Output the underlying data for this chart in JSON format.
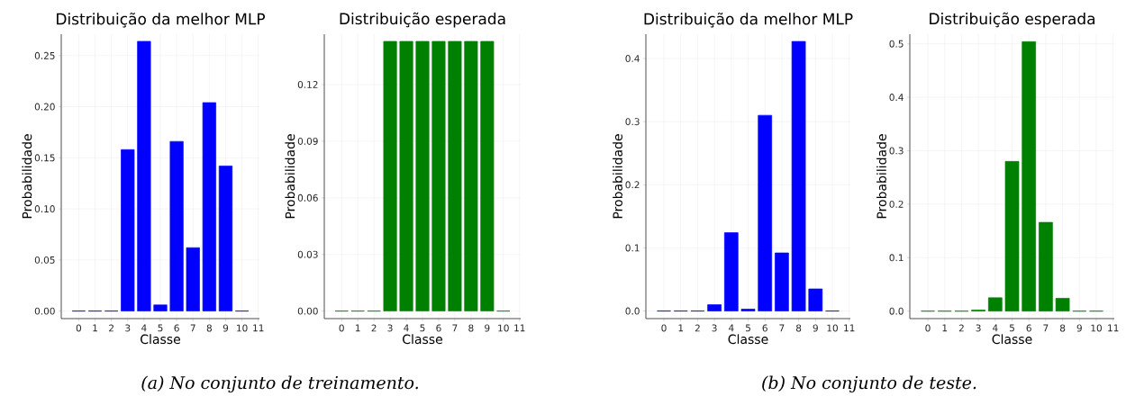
{
  "chart_data": [
    {
      "type": "bar",
      "title": "Distribuição da melhor MLP",
      "xlabel": "Classe",
      "ylabel": "Probabilidade",
      "x": [
        0,
        1,
        2,
        3,
        4,
        5,
        6,
        7,
        8,
        9,
        10
      ],
      "values": [
        0,
        0,
        0,
        0.158,
        0.264,
        0.006,
        0.166,
        0.062,
        0.204,
        0.142,
        0
      ],
      "color": "#0000ff",
      "xlim": [
        -1.07,
        11.07
      ],
      "xticks": [
        0,
        1,
        2,
        3,
        4,
        5,
        6,
        7,
        8,
        9,
        10,
        11
      ],
      "ylim": [
        -0.0074,
        0.271
      ],
      "yticks": [
        {
          "value": 0,
          "label": "0.00"
        },
        0.05,
        {
          "value": 0.1,
          "label": "0.10"
        },
        0.15,
        {
          "value": 0.2,
          "label": "0.20"
        },
        0.25
      ],
      "grid": true,
      "annotations": [
        "(a) No conjunto de treinamento."
      ]
    },
    {
      "type": "bar",
      "title": "Distribuição esperada",
      "xlabel": "Classe",
      "ylabel": "Probabilidade",
      "x": [
        0,
        1,
        2,
        3,
        4,
        5,
        6,
        7,
        8,
        9,
        10
      ],
      "values": [
        0,
        0,
        0,
        0.1429,
        0.1429,
        0.1429,
        0.1429,
        0.1429,
        0.1429,
        0.1429,
        0
      ],
      "color": "#008000",
      "xlim": [
        -1.07,
        11.07
      ],
      "xticks": [
        0,
        1,
        2,
        3,
        4,
        5,
        6,
        7,
        8,
        9,
        10,
        11
      ],
      "ylim": [
        -0.004,
        0.1467
      ],
      "yticks": [
        {
          "value": 0,
          "label": "0.00"
        },
        0.03,
        0.06,
        0.09,
        0.12
      ],
      "grid": true
    },
    {
      "type": "bar",
      "title": "Distribuição da melhor MLP",
      "xlabel": "Classe",
      "ylabel": "Probabilidade",
      "x": [
        0,
        1,
        2,
        3,
        4,
        5,
        6,
        7,
        8,
        9,
        10
      ],
      "values": [
        0,
        0,
        0,
        0.01,
        0.124,
        0.003,
        0.31,
        0.092,
        0.427,
        0.035,
        0
      ],
      "color": "#0000ff",
      "xlim": [
        -1.07,
        11.07
      ],
      "xticks": [
        0,
        1,
        2,
        3,
        4,
        5,
        6,
        7,
        8,
        9,
        10,
        11
      ],
      "ylim": [
        -0.012,
        0.4385
      ],
      "yticks": [
        {
          "value": 0,
          "label": "0.0"
        },
        0.1,
        0.2,
        0.3,
        0.4
      ],
      "grid": true,
      "annotations": [
        "(b) No conjunto de teste."
      ]
    },
    {
      "type": "bar",
      "title": "Distribuição esperada",
      "xlabel": "Classe",
      "ylabel": "Probabilidade",
      "x": [
        0,
        1,
        2,
        3,
        4,
        5,
        6,
        7,
        8,
        9,
        10
      ],
      "values": [
        0,
        0,
        0,
        0.002,
        0.025,
        0.28,
        0.504,
        0.166,
        0.024,
        0,
        0
      ],
      "color": "#008000",
      "xlim": [
        -1.07,
        11.07
      ],
      "xticks": [
        0,
        1,
        2,
        3,
        4,
        5,
        6,
        7,
        8,
        9,
        10,
        11
      ],
      "ylim": [
        -0.014,
        0.518
      ],
      "yticks": [
        {
          "value": 0,
          "label": "0.0"
        },
        0.1,
        0.2,
        0.3,
        0.4,
        0.5
      ],
      "grid": true
    }
  ]
}
